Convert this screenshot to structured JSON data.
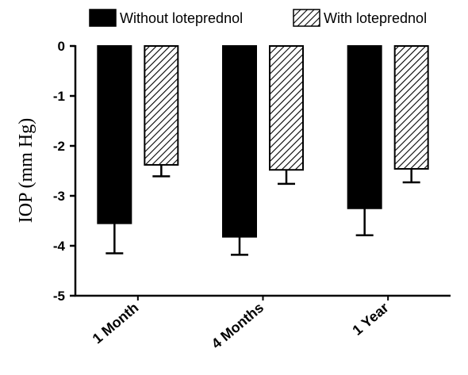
{
  "chart_data": {
    "type": "bar",
    "categories": [
      "1 Month",
      "4 Months",
      "1 Year"
    ],
    "series": [
      {
        "name": "Without loteprednol",
        "values": [
          -3.55,
          -3.82,
          -3.25
        ],
        "errors": [
          0.6,
          0.36,
          0.54
        ],
        "fill": "solid",
        "color": "#000000"
      },
      {
        "name": "With loteprednol",
        "values": [
          -2.38,
          -2.48,
          -2.46
        ],
        "errors": [
          0.23,
          0.28,
          0.27
        ],
        "fill": "hatched",
        "color": "#000000"
      }
    ],
    "ylabel": "IOP (mm Hg)",
    "xlabel": "",
    "ylim": [
      -5,
      0
    ],
    "yticks": [
      "0",
      "-1",
      "-2",
      "-3",
      "-4",
      "-5"
    ],
    "legend_position": "top",
    "grid": false
  }
}
